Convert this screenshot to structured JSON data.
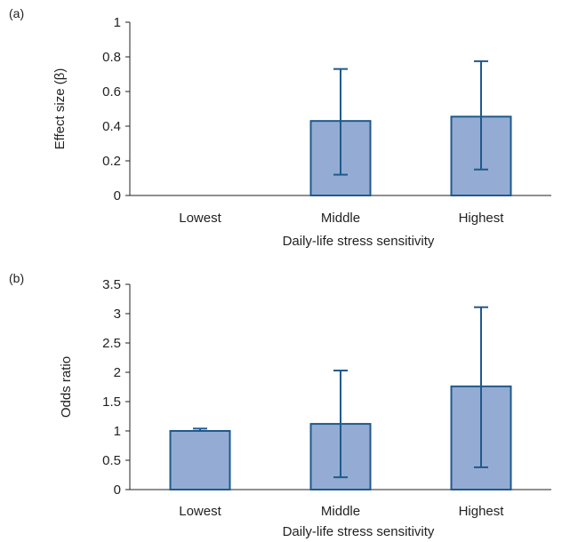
{
  "colors": {
    "bar_fill": "#94acd3",
    "bar_stroke": "#1f5a8c",
    "error_bar": "#1f5a8c",
    "axis": "#222222"
  },
  "chart_data": [
    {
      "type": "bar",
      "panel_label": "(a)",
      "categories": [
        "Lowest",
        "Middle",
        "Highest"
      ],
      "values": [
        0,
        0.43,
        0.455
      ],
      "error_low": [
        null,
        0.12,
        0.15
      ],
      "error_high": [
        null,
        0.73,
        0.775
      ],
      "ylim": [
        0,
        1
      ],
      "yticks": [
        0,
        0.2,
        0.4,
        0.6,
        0.8,
        1
      ],
      "ytick_labels": [
        "0",
        "0.2",
        "0.4",
        "0.6",
        "0.8",
        "1"
      ],
      "xlabel": "Daily-life stress sensitivity",
      "ylabel": "Effect size (β)",
      "grid": false,
      "legend": "none"
    },
    {
      "type": "bar",
      "panel_label": "(b)",
      "categories": [
        "Lowest",
        "Middle",
        "Highest"
      ],
      "values": [
        1.0,
        1.12,
        1.76
      ],
      "error_low": [
        1.0,
        0.21,
        0.38
      ],
      "error_high": [
        1.04,
        2.03,
        3.11
      ],
      "ylim": [
        0,
        3.5
      ],
      "yticks": [
        0,
        0.5,
        1,
        1.5,
        2,
        2.5,
        3,
        3.5
      ],
      "ytick_labels": [
        "0",
        "0.5",
        "1",
        "1.5",
        "2",
        "2.5",
        "3",
        "3.5"
      ],
      "xlabel": "Daily-life stress sensitivity",
      "ylabel": "Odds ratio",
      "grid": false,
      "legend": "none"
    }
  ]
}
